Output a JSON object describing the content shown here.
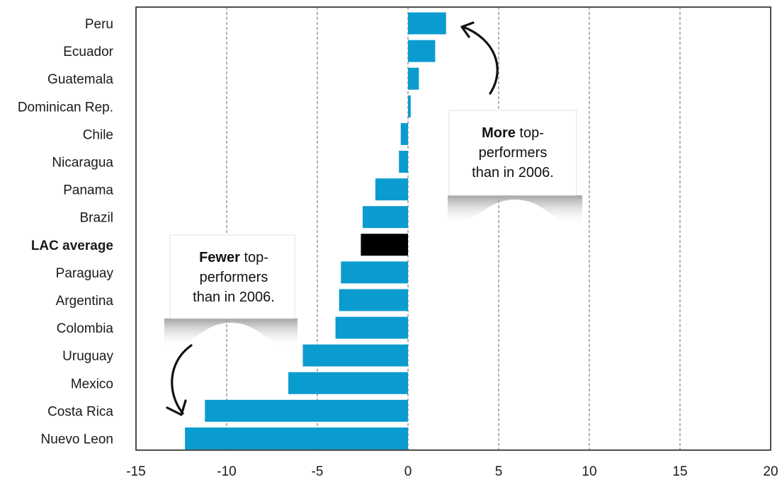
{
  "chart_data": {
    "type": "bar",
    "orientation": "horizontal",
    "categories": [
      "Peru",
      "Ecuador",
      "Guatemala",
      "Dominican Rep.",
      "Chile",
      "Nicaragua",
      "Panama",
      "Brazil",
      "LAC average",
      "Paraguay",
      "Argentina",
      "Colombia",
      "Uruguay",
      "Mexico",
      "Costa Rica",
      "Nuevo Leon"
    ],
    "values": [
      2.1,
      1.5,
      0.6,
      0.15,
      -0.4,
      -0.5,
      -1.8,
      -2.5,
      -2.6,
      -3.7,
      -3.8,
      -4.0,
      -5.8,
      -6.6,
      -11.2,
      -12.3
    ],
    "highlight_category": "LAC average",
    "xlim": [
      -15,
      20
    ],
    "xticks": [
      -15,
      -10,
      -5,
      0,
      5,
      10,
      15,
      20
    ],
    "grid": "vertical dashed",
    "title": "",
    "xlabel": "",
    "ylabel": "",
    "colors": {
      "bar": "#0b9ccf",
      "highlight": "#000000",
      "grid": "#8a8a8a"
    },
    "annotations": [
      {
        "id": "more",
        "bold": "More",
        "rest": " top-",
        "line2": "performers",
        "line3": "than in 2006."
      },
      {
        "id": "fewer",
        "bold": "Fewer",
        "rest": " top-",
        "line2": "performers",
        "line3": "than in 2006."
      }
    ]
  }
}
